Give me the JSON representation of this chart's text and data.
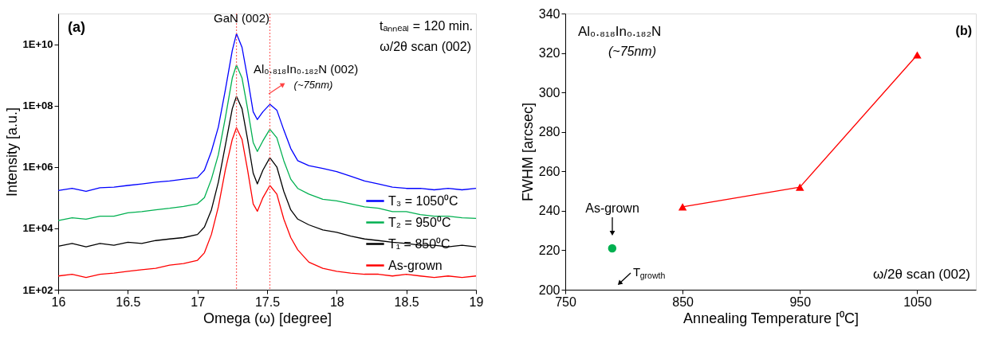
{
  "chart_data": [
    {
      "type": "line",
      "xlabel": "Omega (ω)  [degree]",
      "ylabel": "Intensity [a.u.]",
      "log": true,
      "legend": "bottom right",
      "marker": "none",
      "grid": false,
      "annotations": [
        "(a)",
        "GaN (002)",
        "tₐₙₙₑₐₗ = 120 min.",
        "ω/2θ scan (002)",
        "Al₀.₈₁₈In₀.₁₈₂N (002)",
        "(~75nm)"
      ],
      "xlim": [
        16,
        19
      ],
      "xticks": [
        16,
        16.5,
        17,
        17.5,
        18,
        18.5,
        19
      ],
      "ylim": [
        100,
        100000000000
      ],
      "yticks": [
        {
          "value": 100,
          "label": "1E+02"
        },
        {
          "value": 10000,
          "label": "1E+04"
        },
        {
          "value": 1000000,
          "label": "1E+06"
        },
        {
          "value": 100000000,
          "label": "1E+08"
        },
        {
          "value": 10000000000,
          "label": "1E+10"
        }
      ],
      "ref_lines": [
        {
          "axis": "x",
          "value": 17.28,
          "color": "#ff6666",
          "line_style": "dotted"
        },
        {
          "axis": "x",
          "value": 17.52,
          "color": "#ff6666",
          "line_style": "dotted"
        }
      ],
      "x": [
        16,
        16.1,
        16.2,
        16.3,
        16.4,
        16.5,
        16.6,
        16.7,
        16.8,
        16.9,
        17.0,
        17.05,
        17.1,
        17.15,
        17.2,
        17.25,
        17.28,
        17.32,
        17.36,
        17.4,
        17.43,
        17.47,
        17.52,
        17.57,
        17.62,
        17.67,
        17.72,
        17.8,
        17.9,
        18.0,
        18.1,
        18.2,
        18.3,
        18.4,
        18.5,
        18.6,
        18.7,
        18.8,
        18.9,
        19.0
      ],
      "series": [
        {
          "name": "T₃ = 1050⁰C",
          "color": "#0000ff",
          "values": [
            170000.0,
            200000.0,
            160000.0,
            210000.0,
            220000.0,
            250000.0,
            280000.0,
            320000.0,
            350000.0,
            400000.0,
            450000.0,
            790000.0,
            3200000.0,
            20000000.0,
            320000000.0,
            6300000000.0,
            22000000000.0,
            7900000000.0,
            790000000.0,
            63000000.0,
            35000000.0,
            63000000.0,
            110000000.0,
            71000000.0,
            16000000.0,
            4000000.0,
            1600000.0,
            1100000.0,
            890000.0,
            710000.0,
            500000.0,
            350000.0,
            280000.0,
            220000.0,
            200000.0,
            200000.0,
            180000.0,
            200000.0,
            180000.0,
            200000.0
          ]
        },
        {
          "name": "T₂ = 950⁰C",
          "color": "#00b050",
          "values": [
            18000.0,
            22000.0,
            20000.0,
            25000.0,
            25000.0,
            32000.0,
            35000.0,
            40000.0,
            45000.0,
            52000.0,
            63000.0,
            100000.0,
            400000.0,
            2500000.0,
            40000000.0,
            790000000.0,
            2100000000.0,
            790000000.0,
            79000000.0,
            6300000.0,
            3200000.0,
            7100000.0,
            17000000.0,
            8900000.0,
            1600000.0,
            400000.0,
            200000.0,
            130000.0,
            89000.0,
            79000.0,
            63000.0,
            50000.0,
            45000.0,
            35000.0,
            35000.0,
            28000.0,
            25000.0,
            25000.0,
            22000.0,
            21000.0
          ]
        },
        {
          "name": "T₁ = 850⁰C",
          "color": "#000000",
          "values": [
            2600.0,
            3200.0,
            2500.0,
            3200.0,
            2800.0,
            3500.0,
            3200.0,
            4000.0,
            4500.0,
            5000.0,
            6300.0,
            11000.0,
            40000.0,
            320000.0,
            5000000.0,
            79000000.0,
            200000000.0,
            79000000.0,
            7900000.0,
            630000.0,
            280000.0,
            790000.0,
            2000000.0,
            1000000.0,
            160000.0,
            40000.0,
            20000.0,
            13000.0,
            8900.0,
            7400.0,
            5600.0,
            4500.0,
            4000.0,
            3500.0,
            3200.0,
            2800.0,
            2800.0,
            2500.0,
            2800.0,
            2500.0
          ]
        },
        {
          "name": "As-grown",
          "color": "#ff0000",
          "values": [
            280.0,
            320.0,
            250.0,
            320.0,
            350.0,
            400.0,
            450.0,
            500.0,
            630.0,
            710.0,
            910.0,
            1600.0,
            6300.0,
            50000.0,
            790000.0,
            7900000.0,
            19000000.0,
            7900000.0,
            790000.0,
            63000.0,
            36000.0,
            100000.0,
            250000.0,
            130000.0,
            20000.0,
            5000.0,
            2000.0,
            790.0,
            500.0,
            400.0,
            350.0,
            320.0,
            320.0,
            280.0,
            320.0,
            280.0,
            250.0,
            280.0,
            250.0,
            280.0
          ]
        }
      ]
    },
    {
      "type": "line",
      "xlabel": "Annealing Temperature [⁰C]",
      "ylabel": "FWHM [arcsec]",
      "legend": false,
      "grid": false,
      "annotations": [
        "(b)",
        "Al₀.₈₁₈In₀.₁₈₂N",
        "(~75nm)",
        "As-grown",
        "T$_{growth}$",
        "ω/2θ scan (002)"
      ],
      "xlim": [
        750,
        1100
      ],
      "xticks": [
        750,
        850,
        950,
        1050
      ],
      "ylim": [
        200,
        340
      ],
      "yticks": [
        200,
        220,
        240,
        260,
        280,
        300,
        320,
        340
      ],
      "series": [
        {
          "type": "line",
          "marker": "triangle",
          "color": "#ff0000",
          "x": [
            850,
            950,
            1050
          ],
          "values": [
            242,
            252,
            319
          ]
        },
        {
          "type": "scatter",
          "marker": "circle",
          "color": "#00b050",
          "x": [
            790
          ],
          "values": [
            221
          ]
        }
      ]
    }
  ]
}
